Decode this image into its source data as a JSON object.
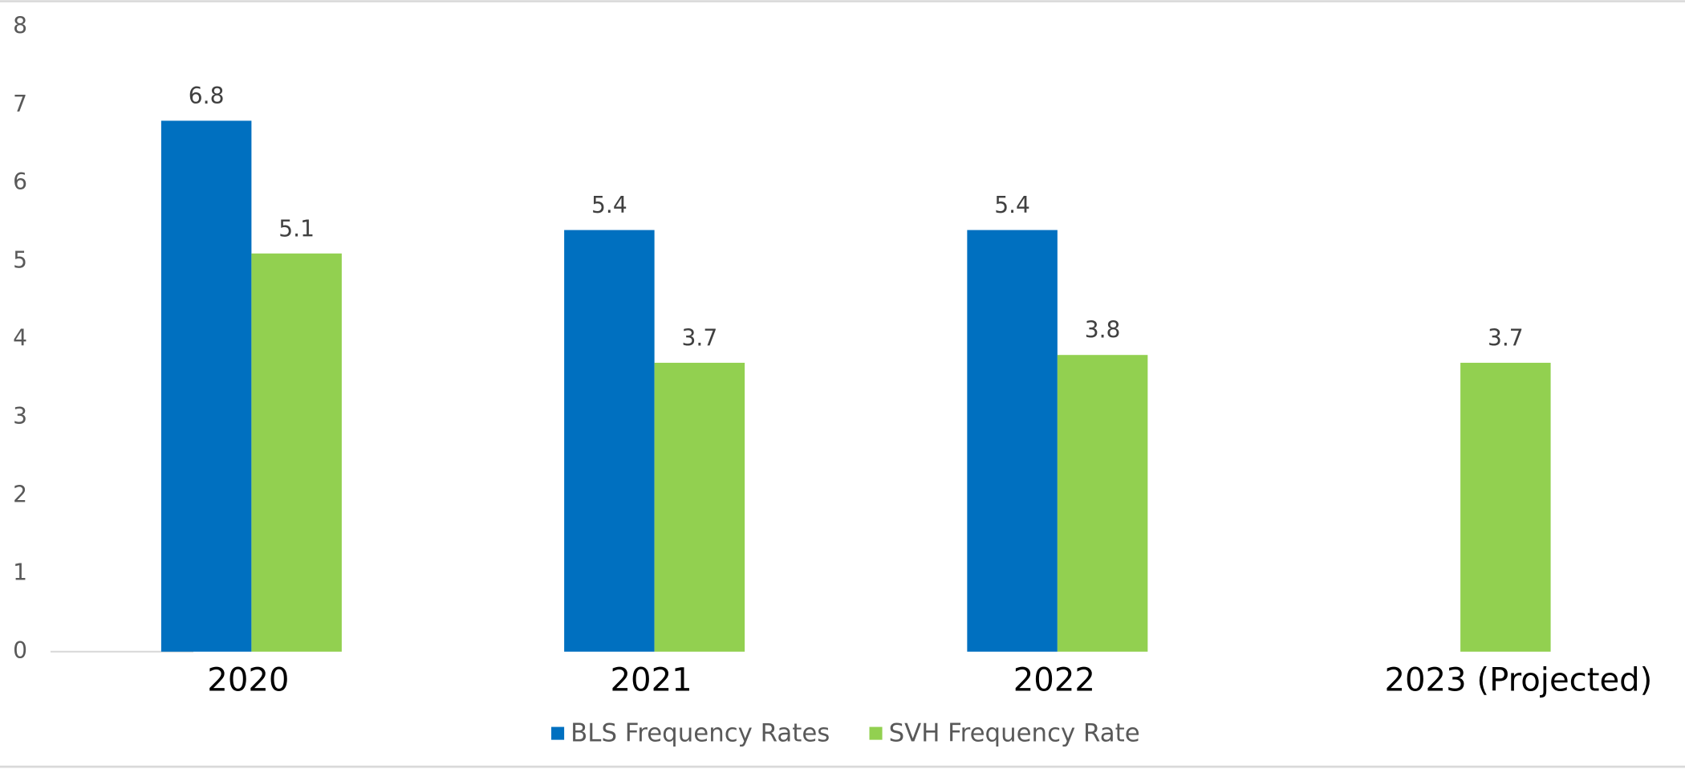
{
  "chart_data": {
    "type": "bar",
    "categories": [
      "2020",
      "2021",
      "2022",
      "2023 (Projected)"
    ],
    "series": [
      {
        "name": "BLS Frequency Rates",
        "color": "#0070c0",
        "values": [
          6.8,
          5.4,
          5.4,
          null
        ]
      },
      {
        "name": "SVH Frequency Rate",
        "color": "#92d050",
        "values": [
          5.1,
          3.7,
          3.8,
          3.7
        ]
      }
    ],
    "ylim": [
      0,
      8
    ],
    "yticks": [
      0,
      1,
      2,
      3,
      4,
      5,
      6,
      7,
      8
    ],
    "grid": false,
    "legend": "bottom"
  }
}
